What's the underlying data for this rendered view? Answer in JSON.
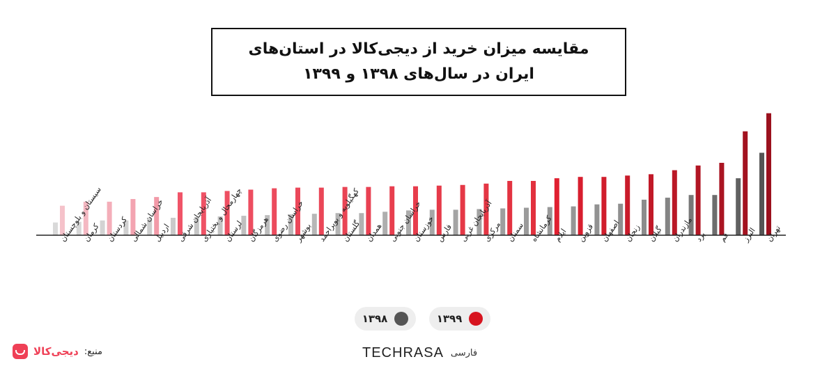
{
  "header": {
    "title_line1": "مقایسه میزان خرید از دیجی‌کالا در استان‌های",
    "title_line2": "ایران در سال‌های ۱۳۹۸ و ۱۳۹۹"
  },
  "legend": {
    "label_1399": "۱۳۹۹",
    "label_1398": "۱۳۹۸"
  },
  "footer": {
    "source_label": "منبع:",
    "source_brand": "دیجی‌کالا",
    "logo_word": "TECHRASA",
    "logo_suffix": "فارسی"
  },
  "colors": {
    "gray_light": "#d9d9d9",
    "gray_dark": "#555555",
    "pink_light": "#f5c2ca",
    "red_mid": "#f05468",
    "red_dark": "#9b111e",
    "accent": "#ef4056"
  },
  "chart_data": {
    "type": "bar",
    "categories": [
      "سیستان و بلوچستان",
      "کرمان",
      "کردستان",
      "خراسان شمالی",
      "اردبیل",
      "آذربایجان شرقی",
      "چهارمحال و بختیاری",
      "لرستان",
      "هرمزگان",
      "خراسان رضوی",
      "بوشهر",
      "کهگیلویه و بویراحمد",
      "گلستان",
      "همدان",
      "خراسان جنوبی",
      "خوزستان",
      "فارس",
      "آذربایجان غربی",
      "مرکزی",
      "سمنان",
      "کرمانشاه",
      "ایلام",
      "قزوین",
      "اصفهان",
      "زنجان",
      "گیلان",
      "مازندران",
      "یزد",
      "قم",
      "البرز",
      "تهران"
    ],
    "series": [
      {
        "name": "۱۳۹۸",
        "values": [
          19,
          20,
          22,
          22,
          26,
          26,
          27,
          28,
          29,
          30,
          31,
          32,
          33,
          33,
          35,
          37,
          38,
          38,
          39,
          40,
          41,
          42,
          43,
          46,
          47,
          53,
          56,
          60,
          60,
          85,
          123
        ]
      },
      {
        "name": "۱۳۹۹",
        "values": [
          44,
          50,
          50,
          54,
          57,
          64,
          64,
          66,
          68,
          70,
          71,
          71,
          72,
          72,
          73,
          73,
          74,
          75,
          77,
          81,
          81,
          85,
          87,
          87,
          89,
          91,
          97,
          104,
          108,
          155,
          182
        ]
      }
    ],
    "title": "مقایسه میزان خرید از دیجی‌کالا در استان‌های ایران در سال‌های ۱۳۹۸ و ۱۳۹۹",
    "xlabel": "",
    "ylabel": "",
    "ylim": [
      0,
      190
    ],
    "grid": false,
    "legend_position": "bottom-center"
  }
}
